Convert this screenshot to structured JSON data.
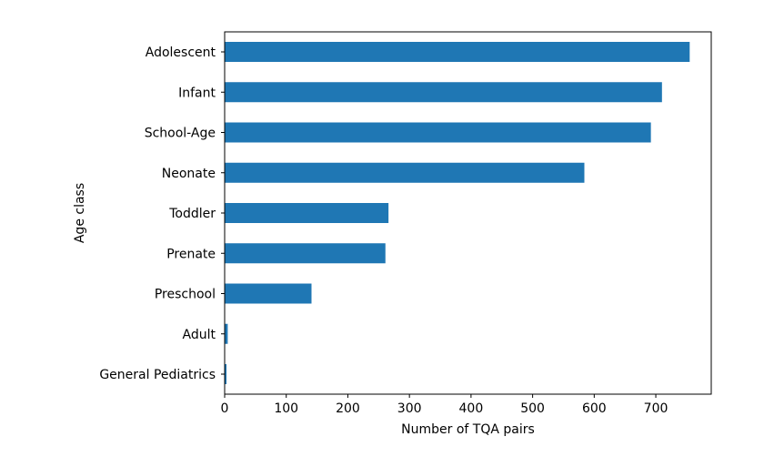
{
  "chart_data": {
    "type": "bar",
    "orientation": "horizontal",
    "title": "",
    "xlabel": "Number of TQA pairs",
    "ylabel": "Age class",
    "categories": [
      "Adolescent",
      "Infant",
      "School-Age",
      "Neonate",
      "Toddler",
      "Prenate",
      "Preschool",
      "Adult",
      "General Pediatrics"
    ],
    "values": [
      755,
      710,
      692,
      584,
      266,
      261,
      141,
      5,
      3
    ],
    "xlim": [
      0,
      790
    ],
    "xticks": [
      0,
      100,
      200,
      300,
      400,
      500,
      600,
      700
    ],
    "xtick_labels": [
      "0",
      "100",
      "200",
      "300",
      "400",
      "500",
      "600",
      "700"
    ],
    "bar_color": "#1f77b4",
    "grid": false,
    "legend": "none"
  }
}
